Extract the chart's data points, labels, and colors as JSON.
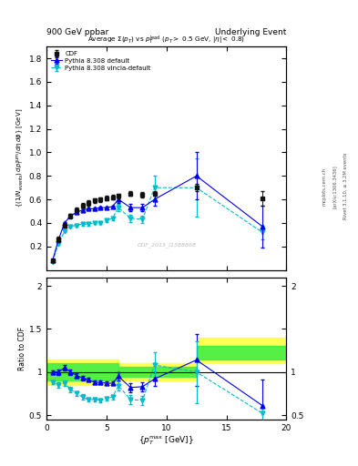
{
  "title_left": "900 GeV ppbar",
  "title_right": "Underlying Event",
  "watermark": "CDF_2015_I1388868",
  "cdf_x": [
    0.5,
    1.0,
    1.5,
    2.0,
    2.5,
    3.0,
    3.5,
    4.0,
    4.5,
    5.0,
    5.5,
    6.0,
    7.0,
    8.0,
    9.0,
    12.5,
    18.0
  ],
  "cdf_y": [
    0.08,
    0.26,
    0.38,
    0.46,
    0.51,
    0.55,
    0.57,
    0.59,
    0.6,
    0.61,
    0.62,
    0.63,
    0.65,
    0.64,
    0.65,
    0.7,
    0.61
  ],
  "cdf_yerr": [
    0.01,
    0.02,
    0.02,
    0.02,
    0.02,
    0.02,
    0.02,
    0.02,
    0.02,
    0.02,
    0.02,
    0.02,
    0.02,
    0.02,
    0.02,
    0.03,
    0.06
  ],
  "py_default_x": [
    0.5,
    1.0,
    1.5,
    2.0,
    2.5,
    3.0,
    3.5,
    4.0,
    4.5,
    5.0,
    5.5,
    6.0,
    7.0,
    8.0,
    9.0,
    12.5,
    18.0
  ],
  "py_default_y": [
    0.08,
    0.26,
    0.4,
    0.46,
    0.49,
    0.51,
    0.52,
    0.52,
    0.53,
    0.53,
    0.54,
    0.6,
    0.53,
    0.53,
    0.6,
    0.8,
    0.37
  ],
  "py_default_yerr": [
    0.005,
    0.01,
    0.01,
    0.01,
    0.01,
    0.01,
    0.01,
    0.01,
    0.01,
    0.01,
    0.01,
    0.03,
    0.03,
    0.03,
    0.05,
    0.2,
    0.18
  ],
  "py_vincia_x": [
    0.5,
    1.0,
    1.5,
    2.0,
    2.5,
    3.0,
    3.5,
    4.0,
    4.5,
    5.0,
    5.5,
    6.0,
    7.0,
    8.0,
    9.0,
    12.5,
    18.0
  ],
  "py_vincia_y": [
    0.07,
    0.22,
    0.33,
    0.37,
    0.38,
    0.39,
    0.39,
    0.4,
    0.4,
    0.42,
    0.44,
    0.53,
    0.44,
    0.43,
    0.7,
    0.7,
    0.32
  ],
  "py_vincia_yerr": [
    0.005,
    0.01,
    0.01,
    0.01,
    0.01,
    0.01,
    0.01,
    0.01,
    0.01,
    0.01,
    0.015,
    0.03,
    0.03,
    0.03,
    0.1,
    0.25,
    0.06
  ],
  "ratio_py_default_y": [
    1.0,
    1.0,
    1.05,
    1.0,
    0.96,
    0.93,
    0.91,
    0.88,
    0.88,
    0.87,
    0.87,
    0.95,
    0.82,
    0.83,
    0.92,
    1.14,
    0.61
  ],
  "ratio_py_default_yerr": [
    0.02,
    0.03,
    0.03,
    0.03,
    0.03,
    0.03,
    0.02,
    0.02,
    0.02,
    0.02,
    0.02,
    0.05,
    0.05,
    0.05,
    0.08,
    0.3,
    0.3
  ],
  "ratio_py_vincia_y": [
    0.88,
    0.85,
    0.87,
    0.8,
    0.75,
    0.71,
    0.68,
    0.68,
    0.67,
    0.69,
    0.71,
    0.84,
    0.68,
    0.67,
    1.08,
    1.0,
    0.52
  ],
  "ratio_py_vincia_yerr": [
    0.02,
    0.03,
    0.03,
    0.03,
    0.03,
    0.03,
    0.02,
    0.02,
    0.02,
    0.02,
    0.025,
    0.05,
    0.05,
    0.05,
    0.15,
    0.36,
    0.1
  ],
  "ylim_main": [
    0.0,
    1.9
  ],
  "ylim_ratio": [
    0.45,
    2.1
  ],
  "xlim": [
    0.0,
    20.0
  ],
  "color_cdf": "#111111",
  "color_default": "#0000ee",
  "color_vincia": "#00bbcc",
  "color_yellow": "#ffff44",
  "color_green": "#44ee44"
}
